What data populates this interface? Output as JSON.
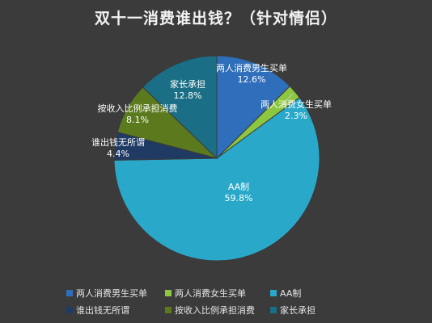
{
  "chart_data": {
    "type": "pie",
    "title": "双十一消费谁出钱？（针对情侣）",
    "legend_position": "bottom",
    "slices": [
      {
        "label": "两人消费男生买单",
        "value": 12.6,
        "value_label": "12.6%",
        "color": "#2f6eba"
      },
      {
        "label": "两人消费女生买单",
        "value": 2.3,
        "value_label": "2.3%",
        "color": "#8dc63f"
      },
      {
        "label": "AA制",
        "value": 59.8,
        "value_label": "59.8%",
        "color": "#2aa8c9"
      },
      {
        "label": "谁出钱无所谓",
        "value": 4.4,
        "value_label": "4.4%",
        "color": "#1f3a63"
      },
      {
        "label": "按收入比例承担消费",
        "value": 8.1,
        "value_label": "8.1%",
        "color": "#5b7a1e"
      },
      {
        "label": "家长承担",
        "value": 12.8,
        "value_label": "12.8%",
        "color": "#1a6f86"
      }
    ]
  }
}
